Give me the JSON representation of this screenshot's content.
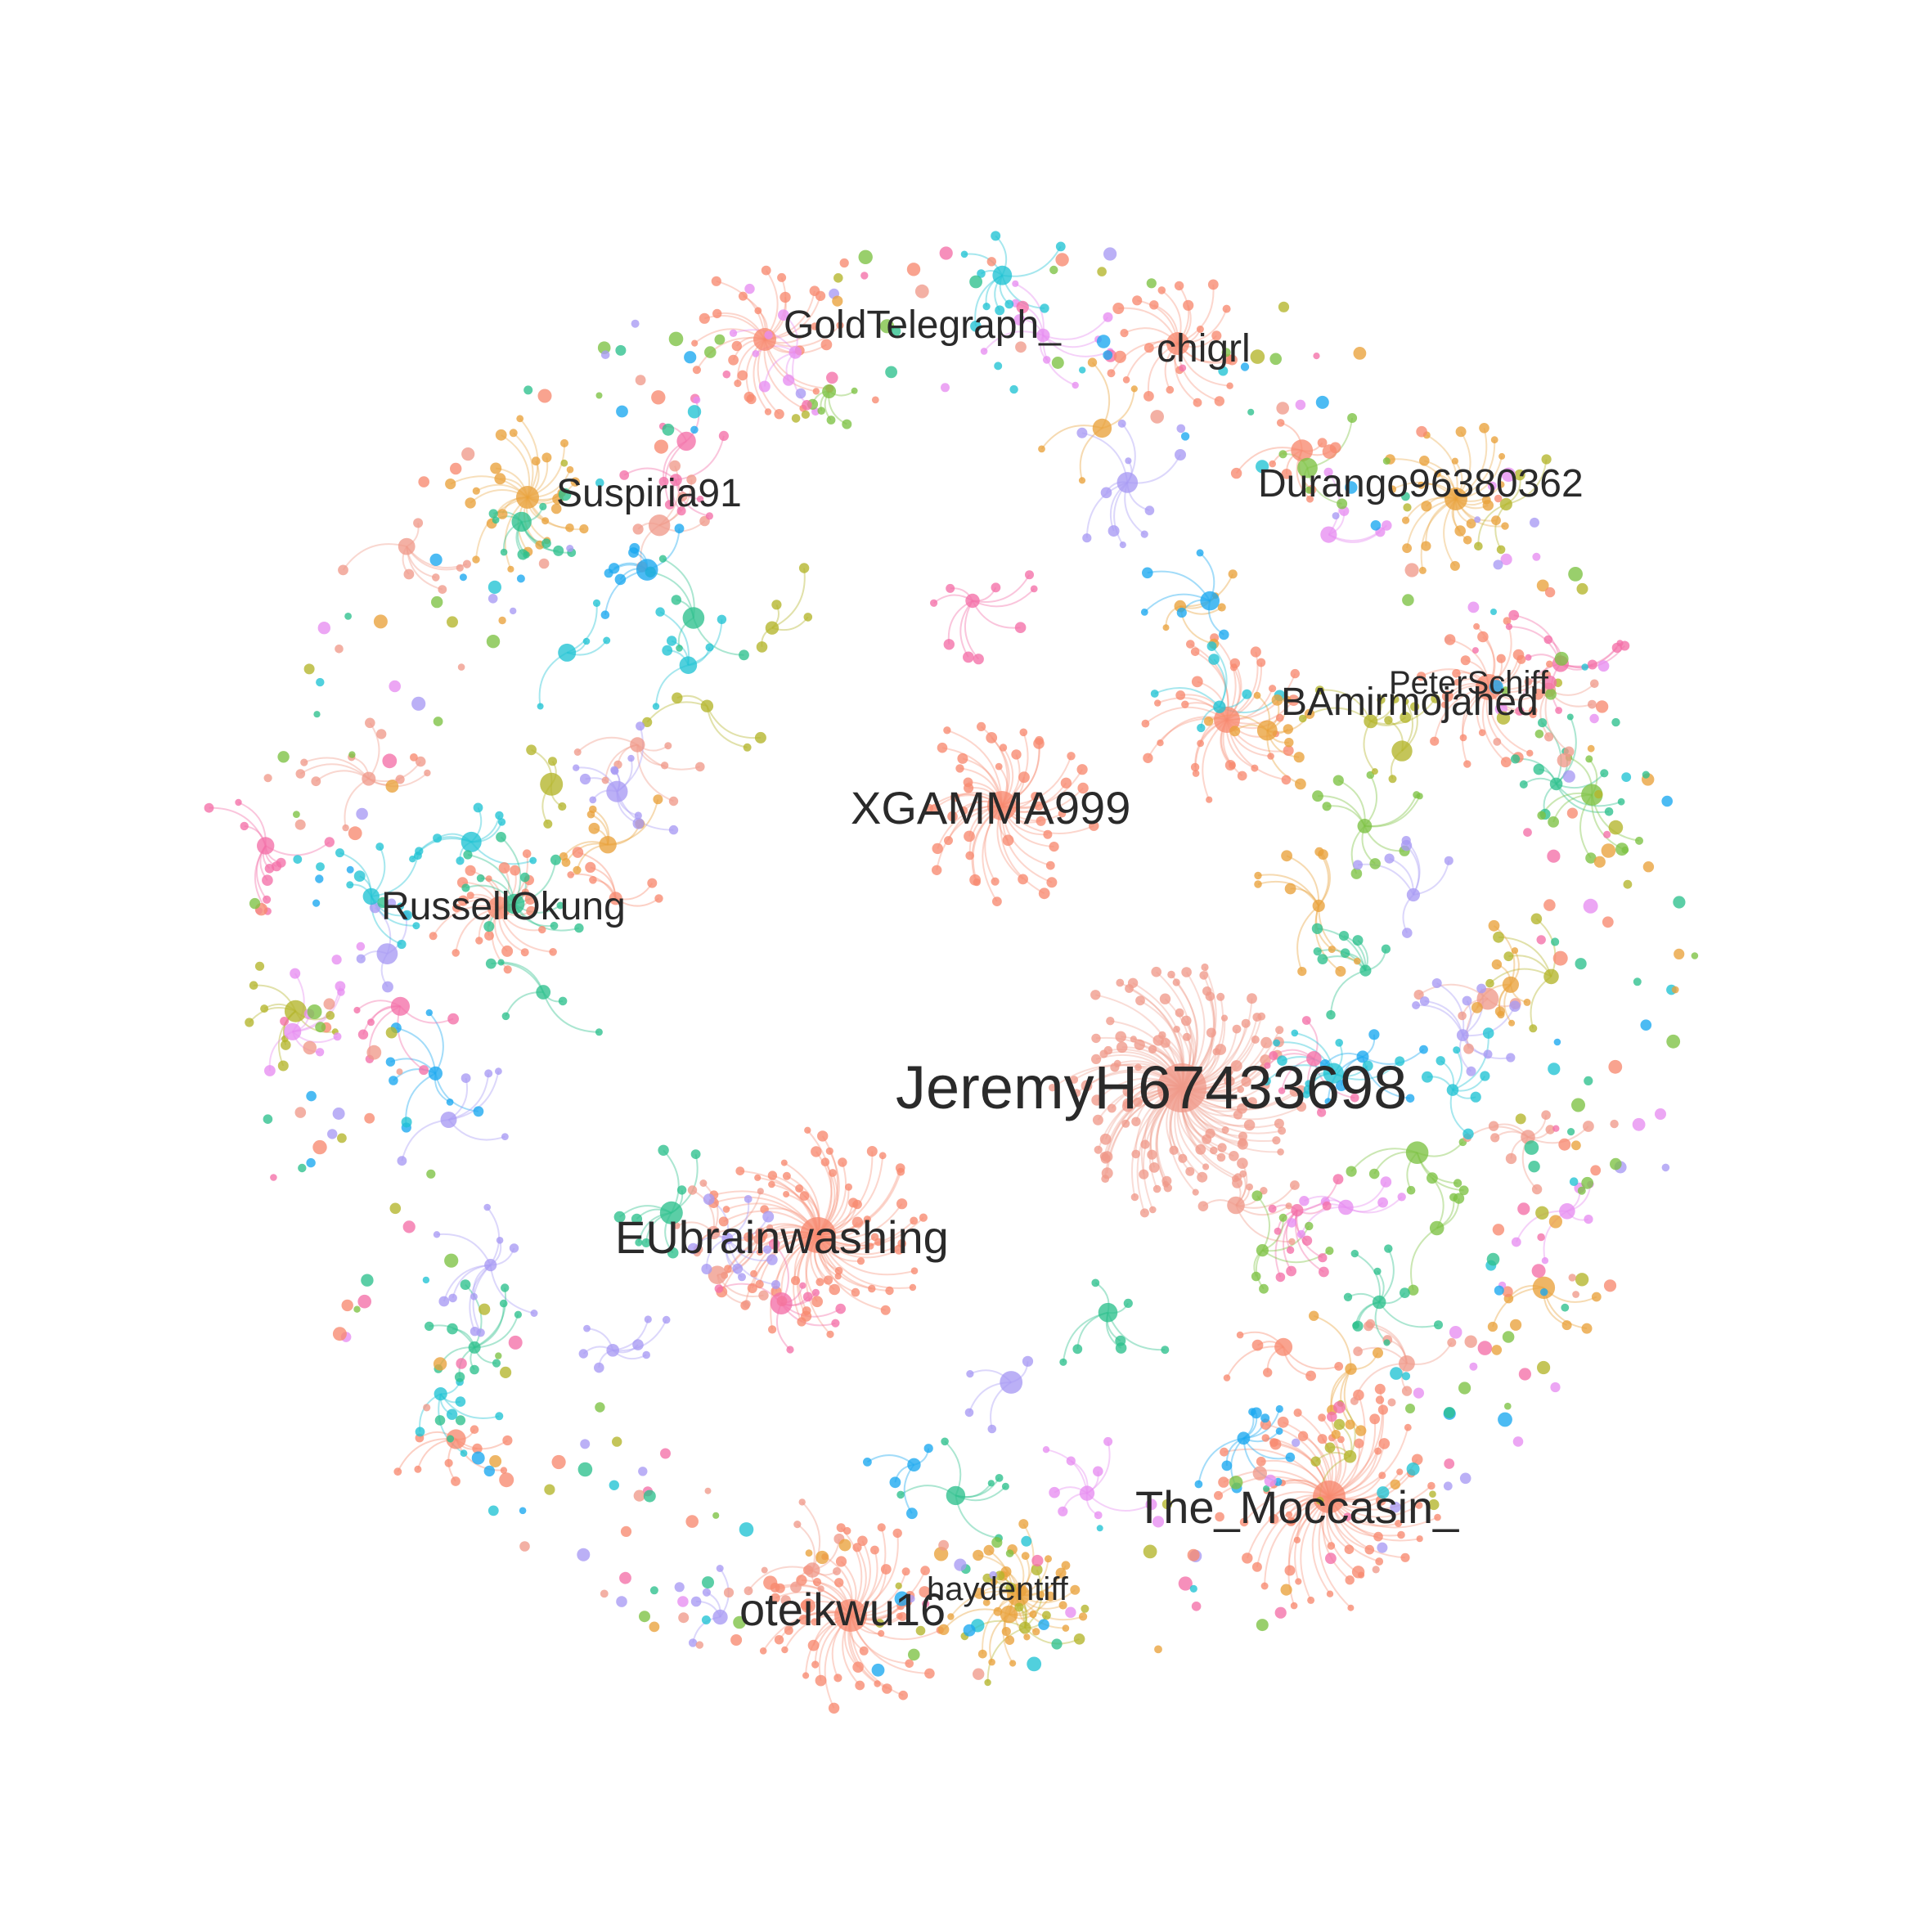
{
  "graph": {
    "type": "network",
    "labels": [
      {
        "id": "jeremy",
        "text": "JeremyH67433698"
      },
      {
        "id": "eubrain",
        "text": "EUbrainwashing"
      },
      {
        "id": "xgamma",
        "text": "XGAMMA999"
      },
      {
        "id": "moccasin",
        "text": "The_Moccasin_"
      },
      {
        "id": "oteikwu",
        "text": "oteikwu16"
      },
      {
        "id": "bamir",
        "text": "BAmirmojahed"
      },
      {
        "id": "peterschiff",
        "text": "PeterSchiff"
      },
      {
        "id": "durango",
        "text": "Durango96380362"
      },
      {
        "id": "suspiria",
        "text": "Suspiria91"
      },
      {
        "id": "goldtelegraph",
        "text": "GoldTelegraph_"
      },
      {
        "id": "chigrl",
        "text": "chigrl"
      },
      {
        "id": "russell",
        "text": "RussellOkung"
      },
      {
        "id": "hayden",
        "text": "haydentiff"
      }
    ],
    "palette": [
      "#f7896f",
      "#e9a23b",
      "#b4b52a",
      "#7cc242",
      "#2dc08d",
      "#20c3d4",
      "#1aa8ef",
      "#a89af4",
      "#e78df1",
      "#f36fa8",
      "#ef9a8a"
    ]
  }
}
